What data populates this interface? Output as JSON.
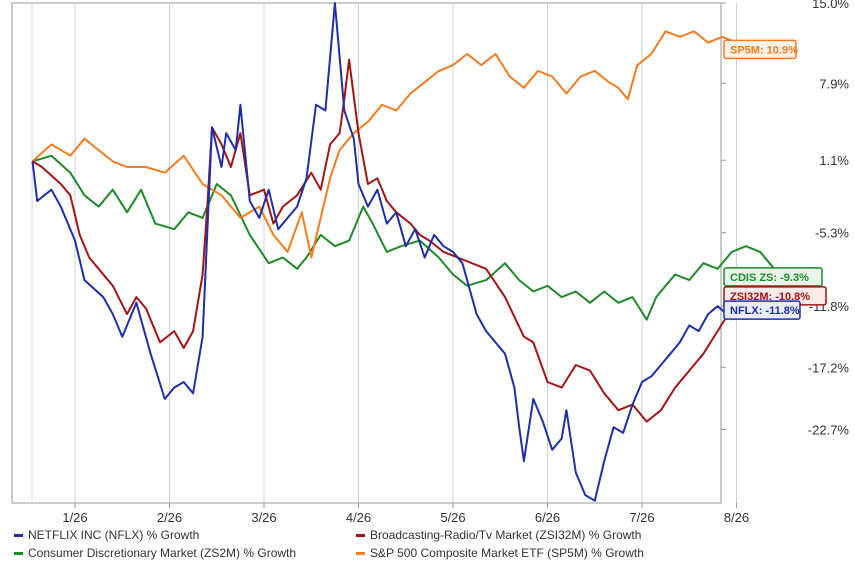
{
  "chart_data": {
    "type": "line",
    "title": "",
    "xlabel": "",
    "ylabel": "",
    "x_ticks": [
      "1/26",
      "2/26",
      "3/26",
      "4/26",
      "5/26",
      "6/26",
      "7/26",
      "8/26"
    ],
    "y_ticks": [
      "15.0%",
      "7.9%",
      "1.1%",
      "-5.3%",
      "-11.8%",
      "-17.2%",
      "-22.7%"
    ],
    "ylim": [
      -29.2,
      15.0
    ],
    "x_range_months": [
      0,
      9.2
    ],
    "grid": "vertical",
    "legend": "bottom",
    "series": [
      {
        "name": "NETFLIX INC (NFLX) % Growth",
        "key": "nflx",
        "color": "#1f2fa8",
        "end_label": "NFLX: -11.8%",
        "x": [
          0.0,
          0.05,
          0.2,
          0.3,
          0.45,
          0.55,
          0.75,
          0.85,
          0.95,
          1.1,
          1.25,
          1.4,
          1.5,
          1.6,
          1.7,
          1.8,
          1.9,
          2.0,
          2.05,
          2.15,
          2.2,
          2.3,
          2.4,
          2.5,
          2.6,
          2.7,
          2.8,
          2.9,
          3.0,
          3.1,
          3.2,
          3.3,
          3.4,
          3.45,
          3.55,
          3.65,
          3.75,
          3.85,
          3.95,
          4.05,
          4.15,
          4.25,
          4.35,
          4.45,
          4.55,
          4.7,
          4.8,
          5.0,
          5.1,
          5.15,
          5.2,
          5.3,
          5.4,
          5.5,
          5.6,
          5.65,
          5.75,
          5.85,
          5.95,
          6.05,
          6.15,
          6.25,
          6.35,
          6.45,
          6.55,
          6.65,
          6.75,
          6.85,
          6.95,
          7.05,
          7.15,
          7.25,
          7.35,
          7.45,
          7.55,
          7.65,
          7.75,
          7.85,
          7.95,
          8.0
        ],
        "values": [
          1.0,
          -2.5,
          -1.5,
          -3.0,
          -6.0,
          -9.5,
          -11.0,
          -12.5,
          -14.5,
          -11.5,
          -16.0,
          -20.0,
          -19.0,
          -18.5,
          -19.5,
          -14.5,
          4.0,
          0.5,
          3.5,
          2.0,
          6.0,
          -2.5,
          -4.0,
          -1.5,
          -5.0,
          -4.0,
          -3.0,
          -0.5,
          6.0,
          5.5,
          15.0,
          5.5,
          3.0,
          -1.0,
          -3.0,
          -1.5,
          -4.5,
          -3.5,
          -6.5,
          -5.0,
          -7.5,
          -5.5,
          -6.5,
          -7.0,
          -8.0,
          -12.5,
          -14.0,
          -16.0,
          -19.0,
          -22.5,
          -25.5,
          -20.0,
          -22.0,
          -24.5,
          -23.5,
          -21.0,
          -26.5,
          -28.5,
          -29.0,
          -25.5,
          -22.5,
          -23.0,
          -20.5,
          -18.5,
          -18.0,
          -17.0,
          -16.0,
          -15.0,
          -13.5,
          -14.0,
          -12.5,
          -11.8,
          -12.5,
          -12.0,
          -11.8,
          -12.2,
          -11.8,
          -12.0,
          -11.8,
          -11.8
        ]
      },
      {
        "name": "Broadcasting-Radio/Tv Market (ZSI32M) % Growth",
        "key": "zsi32m",
        "color": "#a31414",
        "end_label": "ZSI32M: -10.8%",
        "x": [
          0.0,
          0.1,
          0.3,
          0.4,
          0.5,
          0.6,
          0.7,
          0.85,
          1.0,
          1.1,
          1.2,
          1.35,
          1.5,
          1.6,
          1.7,
          1.8,
          1.85,
          1.9,
          2.0,
          2.1,
          2.2,
          2.3,
          2.45,
          2.55,
          2.65,
          2.8,
          2.95,
          3.05,
          3.15,
          3.25,
          3.3,
          3.35,
          3.45,
          3.55,
          3.65,
          3.75,
          3.85,
          4.0,
          4.1,
          4.2,
          4.35,
          4.5,
          4.65,
          4.8,
          5.0,
          5.2,
          5.3,
          5.45,
          5.6,
          5.75,
          5.9,
          6.05,
          6.2,
          6.35,
          6.5,
          6.65,
          6.8,
          6.95,
          7.1,
          7.25,
          7.4,
          7.55,
          7.65,
          7.75,
          7.85,
          7.95,
          8.0
        ],
        "values": [
          1.0,
          0.5,
          -1.0,
          -2.0,
          -5.5,
          -7.5,
          -8.5,
          -10.0,
          -12.5,
          -11.0,
          -12.0,
          -15.0,
          -14.0,
          -15.5,
          -14.0,
          -9.0,
          -3.0,
          4.0,
          2.5,
          0.5,
          3.5,
          -2.0,
          -1.5,
          -4.5,
          -3.0,
          -2.0,
          0.0,
          -1.5,
          2.5,
          3.5,
          6.5,
          10.0,
          3.5,
          -1.0,
          -0.5,
          -2.5,
          -3.5,
          -4.5,
          -5.5,
          -6.0,
          -7.0,
          -7.5,
          -8.0,
          -8.5,
          -11.0,
          -14.5,
          -15.0,
          -18.5,
          -19.0,
          -17.0,
          -17.5,
          -19.5,
          -21.0,
          -20.5,
          -22.0,
          -21.0,
          -19.0,
          -17.5,
          -16.0,
          -14.0,
          -12.0,
          -10.0,
          -10.5,
          -11.0,
          -10.5,
          -10.8,
          -10.8
        ]
      },
      {
        "name": "Consumer Discretionary Market (ZS2M) % Growth",
        "key": "zs2m",
        "color": "#1e8a2a",
        "end_label": "CDIS ZS: -9.3%",
        "x": [
          0.0,
          0.2,
          0.4,
          0.55,
          0.7,
          0.85,
          1.0,
          1.15,
          1.3,
          1.5,
          1.65,
          1.8,
          1.95,
          2.1,
          2.3,
          2.5,
          2.65,
          2.8,
          2.9,
          3.05,
          3.2,
          3.35,
          3.5,
          3.6,
          3.75,
          3.9,
          4.1,
          4.3,
          4.45,
          4.6,
          4.8,
          5.0,
          5.15,
          5.3,
          5.45,
          5.6,
          5.75,
          5.9,
          6.05,
          6.2,
          6.35,
          6.5,
          6.6,
          6.7,
          6.8,
          6.95,
          7.1,
          7.25,
          7.4,
          7.55,
          7.7,
          7.85,
          8.0
        ],
        "values": [
          1.0,
          1.5,
          0.0,
          -2.0,
          -3.0,
          -1.5,
          -3.5,
          -1.5,
          -4.5,
          -5.0,
          -3.5,
          -4.0,
          -1.0,
          -2.0,
          -5.5,
          -8.0,
          -7.5,
          -8.5,
          -7.5,
          -5.5,
          -6.5,
          -6.0,
          -3.0,
          -4.5,
          -7.0,
          -6.5,
          -6.0,
          -7.5,
          -9.0,
          -10.0,
          -9.5,
          -8.0,
          -9.5,
          -10.5,
          -10.0,
          -11.0,
          -10.5,
          -11.5,
          -10.5,
          -11.5,
          -11.0,
          -13.0,
          -11.0,
          -10.0,
          -9.0,
          -9.5,
          -8.0,
          -8.5,
          -7.0,
          -6.5,
          -7.0,
          -8.5,
          -9.3
        ]
      },
      {
        "name": "S&P 500 Composite Market ETF (SP5M) % Growth",
        "key": "sp5m",
        "color": "#f57c1f",
        "end_label": "SP5M: 10.9%",
        "x": [
          0.0,
          0.2,
          0.4,
          0.55,
          0.7,
          0.85,
          1.0,
          1.2,
          1.4,
          1.6,
          1.8,
          2.0,
          2.2,
          2.4,
          2.55,
          2.7,
          2.85,
          2.95,
          3.05,
          3.15,
          3.25,
          3.4,
          3.55,
          3.7,
          3.85,
          4.0,
          4.15,
          4.3,
          4.45,
          4.6,
          4.75,
          4.9,
          5.05,
          5.2,
          5.35,
          5.5,
          5.65,
          5.8,
          5.95,
          6.1,
          6.2,
          6.3,
          6.4,
          6.55,
          6.7,
          6.85,
          7.0,
          7.15,
          7.3,
          7.45,
          7.6,
          7.75,
          7.9,
          8.0
        ],
        "values": [
          1.0,
          2.5,
          1.5,
          3.0,
          2.0,
          1.0,
          0.5,
          0.5,
          0.0,
          1.5,
          -1.0,
          -2.0,
          -4.0,
          -3.0,
          -5.5,
          -7.0,
          -3.5,
          -7.5,
          -4.0,
          -0.5,
          2.0,
          3.5,
          4.5,
          6.0,
          5.5,
          7.0,
          8.0,
          9.0,
          9.5,
          10.5,
          9.5,
          10.5,
          8.5,
          7.5,
          9.0,
          8.5,
          7.0,
          8.5,
          9.0,
          8.0,
          7.5,
          6.5,
          9.5,
          10.5,
          12.5,
          12.0,
          12.5,
          11.5,
          12.0,
          11.5,
          11.0,
          11.5,
          11.0,
          10.9
        ]
      }
    ]
  }
}
